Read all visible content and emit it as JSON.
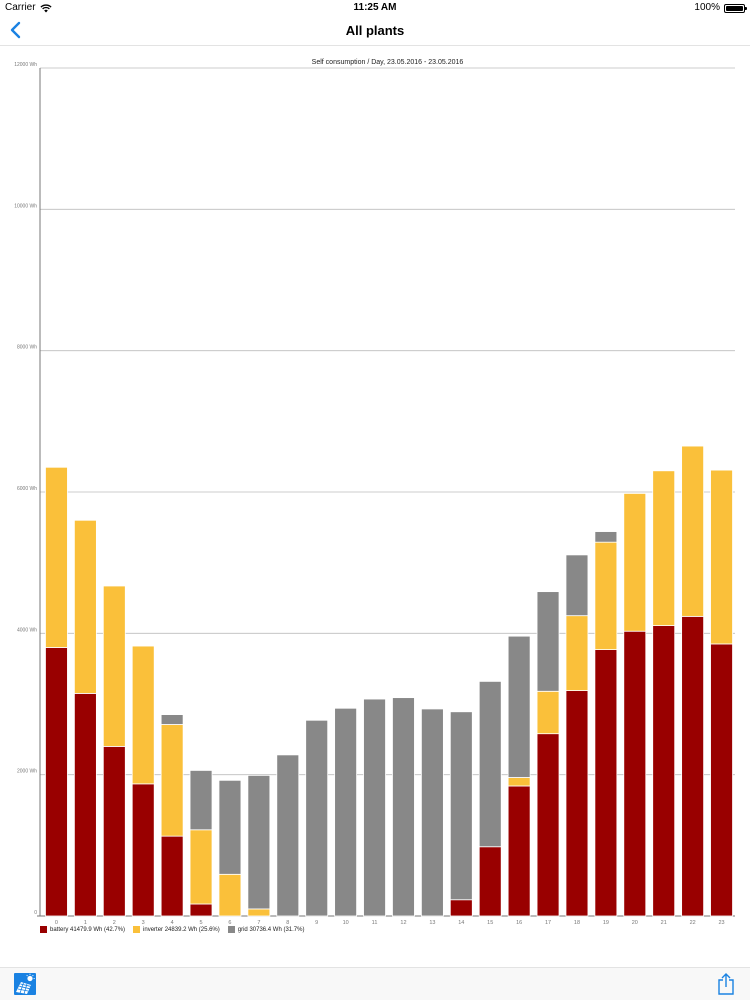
{
  "status_bar": {
    "carrier": "Carrier",
    "time": "11:25 AM",
    "battery": "100%"
  },
  "nav": {
    "title": "All plants"
  },
  "colors": {
    "battery": "#990000",
    "inverter": "#fac03a",
    "grid": "#888888",
    "accent": "#1a82e2"
  },
  "chart_data": {
    "type": "bar",
    "stacked": true,
    "title": "Self consumption / Day, 23.05.2016 - 23.05.2016",
    "xlabel": "",
    "ylabel": "",
    "ylim": [
      0,
      12000
    ],
    "y_ticks": [
      0,
      2000,
      4000,
      6000,
      8000,
      10000,
      12000
    ],
    "y_tick_labels": [
      "0",
      "2000 Wh",
      "4000 Wh",
      "6000 Wh",
      "8000 Wh",
      "10000 Wh",
      "12000 Wh"
    ],
    "grid": true,
    "legend_position": "bottom-left",
    "categories": [
      "0",
      "1",
      "2",
      "3",
      "4",
      "5",
      "6",
      "7",
      "8",
      "9",
      "10",
      "11",
      "12",
      "13",
      "14",
      "15",
      "16",
      "17",
      "18",
      "19",
      "20",
      "21",
      "22",
      "23"
    ],
    "series": [
      {
        "key": "battery",
        "label": "battery 41479.9 Wh (42.7%)",
        "color": "#990000",
        "values": [
          3800,
          3150,
          2400,
          1870,
          1130,
          170,
          0,
          0,
          0,
          0,
          0,
          0,
          0,
          0,
          230,
          980,
          1840,
          2580,
          3190,
          3770,
          4030,
          4110,
          4240,
          3850
        ]
      },
      {
        "key": "inverter",
        "label": "inverter 24839.2 Wh (25.6%)",
        "color": "#fac03a",
        "values": [
          2550,
          2450,
          2270,
          1950,
          1580,
          1050,
          590,
          100,
          0,
          0,
          0,
          0,
          0,
          0,
          0,
          0,
          120,
          600,
          1060,
          1520,
          1950,
          2190,
          2410,
          2460
        ]
      },
      {
        "key": "grid",
        "label": "grid 30736.4 Wh (31.7%)",
        "color": "#888888",
        "values": [
          0,
          0,
          0,
          0,
          140,
          840,
          1330,
          1890,
          2280,
          2770,
          2940,
          3070,
          3090,
          2930,
          2660,
          2340,
          2000,
          1410,
          860,
          150,
          0,
          0,
          0,
          0
        ]
      }
    ]
  }
}
